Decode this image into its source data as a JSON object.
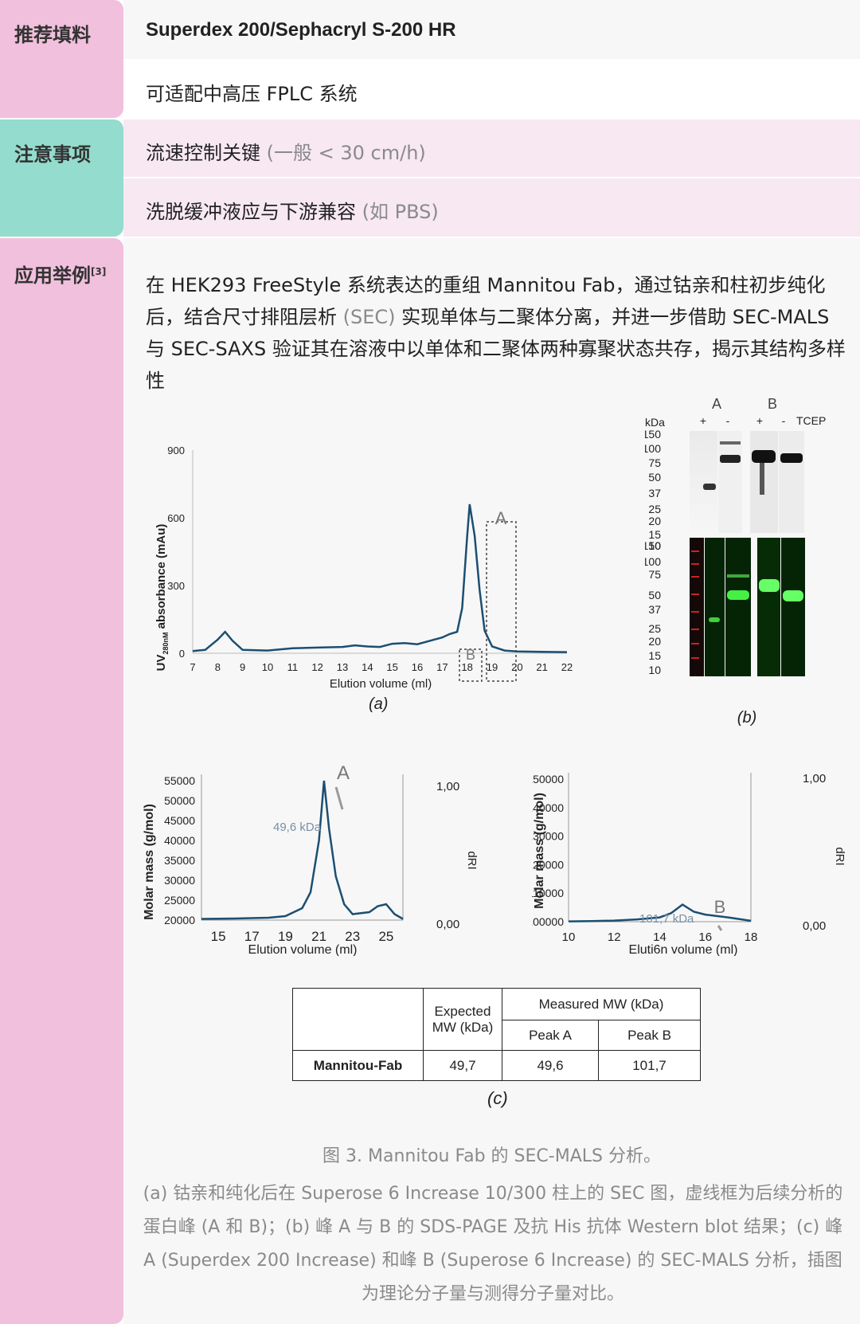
{
  "colors": {
    "pink": "#f1c0dd",
    "teal": "#94dccd",
    "light_pink": "#f7e8f2",
    "gray_row": "#f7f7f7",
    "curve": "#1b4f72"
  },
  "section1": {
    "label": "推荐填料",
    "row1": "Superdex 200/Sephacryl S-200 HR",
    "row2": "可适配中高压 FPLC 系统"
  },
  "section2": {
    "label": "注意事项",
    "row1_main": "流速控制关键",
    "row1_note": "(一般 < 30 cm/h)",
    "row2_main": "洗脱缓冲液应与下游兼容",
    "row2_note": "(如 PBS)"
  },
  "section3": {
    "label": "应用举例",
    "label_sup": "[3]",
    "para_1": "在 HEK293 FreeStyle 系统表达的重组 Mannitou Fab，通过钴亲和柱初步纯化后，结合尺寸排阻层析",
    "para_sec": "(SEC)",
    "para_2": "实现单体与二聚体分离，并进一步借助 SEC-MALS 与 SEC-SAXS 验证其在溶液中以单体和二聚体两种寡聚状态共存，揭示其结构多样性"
  },
  "figure": {
    "chart_a": {
      "ylabel": "UV",
      "ylabel_sub": "280nM",
      "ylabel_rest": " absorbance (mAu)",
      "xlabel": "Elution volume (ml)",
      "yticks": [
        "900",
        "600",
        "300",
        "0"
      ],
      "xticks": [
        "7",
        "8",
        "9",
        "10",
        "11",
        "12",
        "13",
        "14",
        "15",
        "16",
        "17",
        "18",
        "19",
        "20",
        "21",
        "22"
      ],
      "box_a": "A",
      "box_b": "B",
      "panel": "a"
    },
    "gel": {
      "kda": "kDa",
      "lane_a": "A",
      "lane_b": "B",
      "plus": "+",
      "minus": "-",
      "tcep": "TCEP",
      "markers_top": [
        "150",
        "100",
        "75",
        "50",
        "37",
        "25",
        "20",
        "15",
        "10"
      ],
      "markers_bottom": [
        "150",
        "100",
        "75",
        "50",
        "37",
        "25",
        "20",
        "15",
        "10"
      ],
      "panel": "b"
    },
    "chart_c1": {
      "ylabel": "Molar mass (g/mol)",
      "xlabel": "Elution volume (ml)",
      "yticks": [
        "55000",
        "50000",
        "45000",
        "40000",
        "35000",
        "30000",
        "25000",
        "20000"
      ],
      "xticks": [
        "15",
        "17",
        "19",
        "21",
        "23",
        "25"
      ],
      "right_top": "1,00",
      "right_bottom": "0,00",
      "right_label": "dRI",
      "peak": "A",
      "annotation": "49,6 kDa"
    },
    "chart_c2": {
      "ylabel": "Molar mass (g/mol)",
      "xlabel": "Eluti6n volume (ml)",
      "yticks": [
        "150000",
        "140000",
        "130000",
        "120000",
        "110000",
        "100000"
      ],
      "xticks": [
        "10",
        "12",
        "14",
        "16",
        "18"
      ],
      "right_top": "1,00",
      "right_bottom": "0,00",
      "right_label": "dRI",
      "peak": "B",
      "annotation": "101,7 kDa"
    },
    "table": {
      "expected_1": "Expected",
      "expected_2": "MW (kDa)",
      "measured": "Measured MW (kDa)",
      "peak_a": "Peak A",
      "peak_b": "Peak B",
      "sample": "Mannitou-Fab",
      "expected_val": "49,7",
      "peak_a_val": "49,6",
      "peak_b_val": "101,7"
    },
    "panel_c": "c"
  },
  "caption": {
    "title": "图 3. Mannitou Fab 的 SEC-MALS 分析。",
    "body": "(a) 钴亲和纯化后在 Superose 6 Increase 10/300 柱上的 SEC 图，虚线框为后续分析的蛋白峰 (A 和 B)；(b) 峰 A 与 B 的 SDS-PAGE 及抗 His 抗体 Western blot 结果；(c) 峰 A (Superdex 200 Increase) 和峰 B (Superose 6 Increase) 的 SEC-MALS 分析，插图为理论分子量与测得分子量对比。"
  },
  "chart_data": [
    {
      "type": "line",
      "title": "",
      "xlabel": "Elution volume (ml)",
      "ylabel": "UV280nM absorbance (mAu)",
      "xlim": [
        7,
        22
      ],
      "ylim": [
        0,
        900
      ],
      "x": [
        7,
        7.5,
        8,
        8.3,
        8.6,
        9,
        10,
        11,
        12,
        13,
        13.5,
        14,
        14.5,
        15,
        15.5,
        16,
        16.5,
        17,
        17.3,
        17.6,
        17.8,
        18,
        18.1,
        18.3,
        18.5,
        18.7,
        19,
        19.5,
        20,
        21,
        22
      ],
      "y": [
        10,
        15,
        60,
        95,
        55,
        15,
        12,
        22,
        25,
        28,
        35,
        30,
        28,
        42,
        45,
        40,
        55,
        70,
        85,
        95,
        200,
        520,
        660,
        520,
        280,
        100,
        30,
        12,
        8,
        6,
        5
      ]
    },
    {
      "type": "line",
      "title": "",
      "xlabel": "Elution volume (ml)",
      "ylabel": "Molar mass (g/mol)",
      "xlim": [
        14,
        26
      ],
      "ylim": [
        20000,
        55000
      ],
      "series": [
        {
          "values_x": [
            14,
            16,
            18,
            19,
            20,
            20.5,
            21,
            21.3,
            21.6,
            22,
            22.5,
            23,
            24,
            24.5,
            25,
            25.5,
            26
          ],
          "values_y": [
            20300,
            20400,
            20600,
            21000,
            23000,
            27000,
            40000,
            55000,
            43000,
            31000,
            24000,
            21500,
            22000,
            23500,
            24000,
            21500,
            20300
          ]
        }
      ],
      "annotations": [
        {
          "label": "49,6 kDa"
        }
      ]
    },
    {
      "type": "line",
      "title": "",
      "xlabel": "Eluti6n volume (ml)",
      "ylabel": "Molar mass (g/mol)",
      "xlim": [
        10,
        18
      ],
      "ylim": [
        100000,
        150000
      ],
      "series": [
        {
          "values_x": [
            10,
            11,
            12,
            13,
            14,
            14.5,
            15,
            15.5,
            16,
            17,
            18
          ],
          "values_y": [
            100100,
            100200,
            100400,
            100800,
            101500,
            103000,
            106000,
            103500,
            102500,
            101500,
            100300
          ]
        }
      ],
      "annotations": [
        {
          "label": "101,7 kDa"
        }
      ]
    }
  ]
}
